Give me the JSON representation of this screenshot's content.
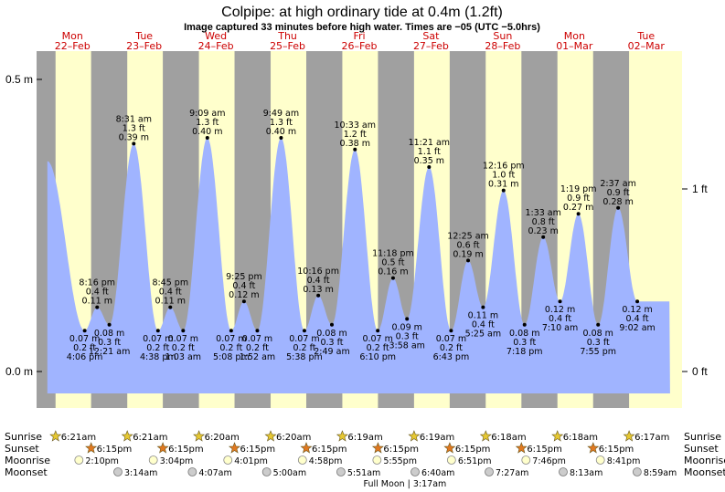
{
  "header": {
    "title": "Colpipe: at high  ordinary tide at 0.4m (1.2ft)",
    "subtitle": "Image captured 33 minutes before high water. Times are −05 (UTC −5.0hrs)"
  },
  "axes": {
    "left_ticks": [
      "0.5 m",
      "0.0 m"
    ],
    "right_ticks": [
      "1 ft",
      "0 ft"
    ]
  },
  "days": [
    {
      "dow": "Mon",
      "date": "22–Feb"
    },
    {
      "dow": "Tue",
      "date": "23–Feb"
    },
    {
      "dow": "Wed",
      "date": "24–Feb"
    },
    {
      "dow": "Thu",
      "date": "25–Feb"
    },
    {
      "dow": "Fri",
      "date": "26–Feb"
    },
    {
      "dow": "Sat",
      "date": "27–Feb"
    },
    {
      "dow": "Sun",
      "date": "28–Feb"
    },
    {
      "dow": "Mon",
      "date": "01–Mar"
    },
    {
      "dow": "Tue",
      "date": "02–Mar"
    }
  ],
  "chart_data": {
    "type": "area",
    "title": "Colpipe: at high  ordinary tide at 0.4m (1.2ft)",
    "ylabel": "",
    "y_unit": "m",
    "ylim": [
      -0.06,
      0.56
    ],
    "xlim_hours": [
      0,
      216
    ],
    "start_level_m": 0.36,
    "end_level_m": 0.12,
    "events": [
      {
        "hour": 16.1,
        "m": 0.07,
        "ft": "0.2 ft",
        "m_text": "0.07 m",
        "time": "4:06 pm"
      },
      {
        "hour": 20.27,
        "m": 0.11,
        "ft": "0.4 ft",
        "m_text": "0.11 m",
        "time": "8:16 pm"
      },
      {
        "hour": 24.35,
        "m": 0.08,
        "ft": "0.3 ft",
        "m_text": "0.08 m",
        "time": "12:21 am"
      },
      {
        "hour": 32.52,
        "m": 0.39,
        "ft": "1.3 ft",
        "m_text": "0.39 m",
        "time": "8:31 am"
      },
      {
        "hour": 40.63,
        "m": 0.07,
        "ft": "0.2 ft",
        "m_text": "0.07 m",
        "time": "4:38 pm"
      },
      {
        "hour": 44.75,
        "m": 0.11,
        "ft": "0.4 ft",
        "m_text": "0.11 m",
        "time": "8:45 pm"
      },
      {
        "hour": 49.05,
        "m": 0.07,
        "ft": "0.2 ft",
        "m_text": "0.07 m",
        "time": "1:03 am"
      },
      {
        "hour": 57.15,
        "m": 0.4,
        "ft": "1.3 ft",
        "m_text": "0.40 m",
        "time": "9:09 am"
      },
      {
        "hour": 65.13,
        "m": 0.07,
        "ft": "0.2 ft",
        "m_text": "0.07 m",
        "time": "5:08 pm"
      },
      {
        "hour": 69.42,
        "m": 0.12,
        "ft": "0.4 ft",
        "m_text": "0.12 m",
        "time": "9:25 pm"
      },
      {
        "hour": 73.87,
        "m": 0.07,
        "ft": "0.2 ft",
        "m_text": "0.07 m",
        "time": "1:52 am"
      },
      {
        "hour": 81.82,
        "m": 0.4,
        "ft": "1.3 ft",
        "m_text": "0.40 m",
        "time": "9:49 am"
      },
      {
        "hour": 89.63,
        "m": 0.07,
        "ft": "0.2 ft",
        "m_text": "0.07 m",
        "time": "5:38 pm"
      },
      {
        "hour": 94.27,
        "m": 0.13,
        "ft": "0.4 ft",
        "m_text": "0.13 m",
        "time": "10:16 pm"
      },
      {
        "hour": 98.82,
        "m": 0.08,
        "ft": "0.3 ft",
        "m_text": "0.08 m",
        "time": "2:49 am"
      },
      {
        "hour": 106.55,
        "m": 0.38,
        "ft": "1.2 ft",
        "m_text": "0.38 m",
        "time": "10:33 am"
      },
      {
        "hour": 114.17,
        "m": 0.07,
        "ft": "0.2 ft",
        "m_text": "0.07 m",
        "time": "6:10 pm"
      },
      {
        "hour": 119.3,
        "m": 0.16,
        "ft": "0.5 ft",
        "m_text": "0.16 m",
        "time": "11:18 pm"
      },
      {
        "hour": 123.97,
        "m": 0.09,
        "ft": "0.3 ft",
        "m_text": "0.09 m",
        "time": "3:58 am"
      },
      {
        "hour": 131.35,
        "m": 0.35,
        "ft": "1.1 ft",
        "m_text": "0.35 m",
        "time": "11:21 am"
      },
      {
        "hour": 138.72,
        "m": 0.07,
        "ft": "0.2 ft",
        "m_text": "0.07 m",
        "time": "6:43 pm"
      },
      {
        "hour": 144.42,
        "m": 0.19,
        "ft": "0.6 ft",
        "m_text": "0.19 m",
        "time": "12:25 am"
      },
      {
        "hour": 149.42,
        "m": 0.11,
        "ft": "0.4 ft",
        "m_text": "0.11 m",
        "time": "5:25 am"
      },
      {
        "hour": 156.27,
        "m": 0.31,
        "ft": "1.0 ft",
        "m_text": "0.31 m",
        "time": "12:16 pm"
      },
      {
        "hour": 163.3,
        "m": 0.08,
        "ft": "0.3 ft",
        "m_text": "0.08 m",
        "time": "7:18 pm"
      },
      {
        "hour": 169.55,
        "m": 0.23,
        "ft": "0.8 ft",
        "m_text": "0.23 m",
        "time": "1:33 am"
      },
      {
        "hour": 175.17,
        "m": 0.12,
        "ft": "0.4 ft",
        "m_text": "0.12 m",
        "time": "7:10 am"
      },
      {
        "hour": 181.32,
        "m": 0.27,
        "ft": "0.9 ft",
        "m_text": "0.27 m",
        "time": "1:19 pm"
      },
      {
        "hour": 187.92,
        "m": 0.08,
        "ft": "0.3 ft",
        "m_text": "0.08 m",
        "time": "7:55 pm"
      },
      {
        "hour": 194.62,
        "m": 0.28,
        "ft": "0.9 ft",
        "m_text": "0.28 m",
        "time": "2:37 am"
      },
      {
        "hour": 201.03,
        "m": 0.12,
        "ft": "0.4 ft",
        "m_text": "0.12 m",
        "time": "9:02 am"
      }
    ],
    "daylight": [
      {
        "rise": "6:21am",
        "set": "6:15pm",
        "rise_h": 6.35,
        "set_h": 18.25
      },
      {
        "rise": "6:21am",
        "set": "6:15pm",
        "rise_h": 30.35,
        "set_h": 42.25
      },
      {
        "rise": "6:20am",
        "set": "6:15pm",
        "rise_h": 54.33,
        "set_h": 66.25
      },
      {
        "rise": "6:20am",
        "set": "6:15pm",
        "rise_h": 78.33,
        "set_h": 90.25
      },
      {
        "rise": "6:19am",
        "set": "6:15pm",
        "rise_h": 102.32,
        "set_h": 114.25
      },
      {
        "rise": "6:19am",
        "set": "6:15pm",
        "rise_h": 126.32,
        "set_h": 138.25
      },
      {
        "rise": "6:18am",
        "set": "6:15pm",
        "rise_h": 150.3,
        "set_h": 162.25
      },
      {
        "rise": "6:18am",
        "set": "6:15pm",
        "rise_h": 174.3,
        "set_h": 186.25
      },
      {
        "rise": "6:17am",
        "set": "",
        "rise_h": 198.28,
        "set_h": null
      }
    ],
    "moonrise": [
      {
        "time": "2:10pm",
        "hour": 14.17
      },
      {
        "time": "3:04pm",
        "hour": 39.07
      },
      {
        "time": "4:01pm",
        "hour": 64.02
      },
      {
        "time": "4:58pm",
        "hour": 88.97
      },
      {
        "time": "5:55pm",
        "hour": 113.92
      },
      {
        "time": "6:51pm",
        "hour": 138.85
      },
      {
        "time": "7:46pm",
        "hour": 163.77
      },
      {
        "time": "8:41pm",
        "hour": 188.68
      }
    ],
    "moonset": [
      {
        "time": "3:14am",
        "hour": 27.23
      },
      {
        "time": "4:07am",
        "hour": 52.12
      },
      {
        "time": "5:00am",
        "hour": 77.0
      },
      {
        "time": "5:51am",
        "hour": 101.85
      },
      {
        "time": "6:40am",
        "hour": 126.67
      },
      {
        "time": "7:27am",
        "hour": 151.45
      },
      {
        "time": "8:13am",
        "hour": 176.22
      },
      {
        "time": "8:59am",
        "hour": 200.98
      }
    ],
    "full_moon": {
      "text": "Full Moon | 3:17am",
      "hour": 123.28
    },
    "row_labels": {
      "sunrise": "Sunrise",
      "sunset": "Sunset",
      "moonrise": "Moonrise",
      "moonset": "Moonset"
    },
    "colors": {
      "night": "#a0a0a0",
      "day": "#ffffcc",
      "water": "#a0b4ff",
      "day_label": "#cc0000",
      "sun": "#e6c832",
      "sunset_star": "#e07820",
      "moon": "#ffffcc",
      "moonset_fill": "#cccccc"
    }
  }
}
